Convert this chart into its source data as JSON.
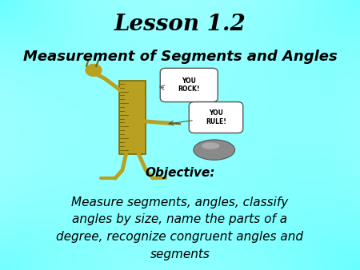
{
  "title": "Lesson 1.2",
  "subtitle": "Measurement of Segments and Angles",
  "objective_label": "Objective:",
  "body_text": "Measure segments, angles, classify\nangles by size, name the parts of a\ndegree, recognize congruent angles and\nsegments",
  "bg_cyan": [
    0.0,
    1.0,
    1.0
  ],
  "bg_white": [
    1.0,
    1.0,
    1.0
  ],
  "title_fontsize": 20,
  "subtitle_fontsize": 13,
  "objective_fontsize": 11,
  "body_fontsize": 11,
  "text_color": "#000000",
  "ruler_color": "#b8a020",
  "ruler_dark": "#7a6800",
  "rock_color": "#888888",
  "figsize": [
    4.5,
    3.38
  ],
  "dpi": 100
}
